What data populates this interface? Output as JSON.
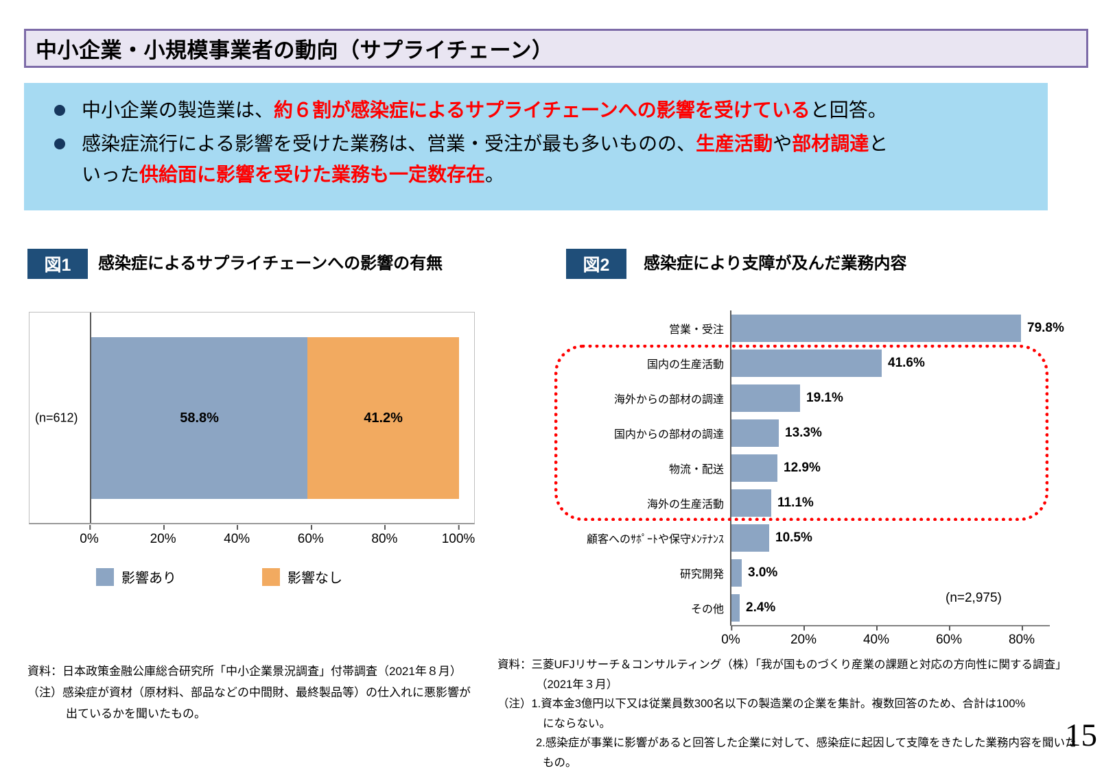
{
  "page": {
    "title": "中小企業・小規模事業者の動向（サプライチェーン）",
    "page_number": "15"
  },
  "summary": {
    "bullet1": {
      "t1": "中小企業の製造業は、",
      "em1": "約６割が感染症によるサプライチェーンへの影響を受けている",
      "t2": "と回答。"
    },
    "bullet2": {
      "t1": "感染症流行による影響を受けた業務は、営業・受注が最も多いものの、",
      "em1": "生産活動",
      "t2": "や",
      "em2": "部材調達",
      "t3": "と",
      "t4": "いった",
      "em3": "供給面に影響を受けた業務も一定数存在",
      "t5": "。"
    }
  },
  "chart_data": [
    {
      "type": "bar",
      "subtype": "stacked-horizontal-100pct",
      "fig_label": "図1",
      "title": "感染症によるサプライチェーンへの影響の有無",
      "n_label": "(n=612)",
      "categories": [
        "影響あり",
        "影響なし"
      ],
      "values": [
        58.8,
        41.2
      ],
      "value_labels": [
        "58.8%",
        "41.2%"
      ],
      "colors": [
        "#8CA5C3",
        "#F2AA60"
      ],
      "x_ticks": [
        "0%",
        "20%",
        "40%",
        "60%",
        "80%",
        "100%"
      ],
      "xlim": [
        0,
        100
      ],
      "legend_position": "bottom"
    },
    {
      "type": "bar",
      "subtype": "horizontal",
      "fig_label": "図2",
      "title": "感染症により支障が及んだ業務内容",
      "n_label": "(n=2,975)",
      "categories": [
        "営業・受注",
        "国内の生産活動",
        "海外からの部材の調達",
        "国内からの部材の調達",
        "物流・配送",
        "海外の生産活動",
        "顧客へのｻﾎﾟｰﾄや保守ﾒﾝﾃﾅﾝｽ",
        "研究開発",
        "その他"
      ],
      "values": [
        79.8,
        41.6,
        19.1,
        13.3,
        12.9,
        11.1,
        10.5,
        3.0,
        2.4
      ],
      "value_labels": [
        "79.8%",
        "41.6%",
        "19.1%",
        "13.3%",
        "12.9%",
        "11.1%",
        "10.5%",
        "3.0%",
        "2.4%"
      ],
      "bar_color": "#8CA5C3",
      "x_ticks": [
        "0%",
        "20%",
        "40%",
        "60%",
        "80%"
      ],
      "xlim": [
        0,
        93
      ],
      "highlight": {
        "style": "red-dotted-rounded-box",
        "rows": [
          1,
          2,
          3,
          4,
          5
        ]
      }
    }
  ],
  "footnote_left": {
    "line1": "資料：日本政策金融公庫総合研究所「中小企業景況調査」付帯調査（2021年８月）",
    "line2": "（注）感染症が資材（原材料、部品などの中間財、最終製品等）の仕入れに悪影響が",
    "line3": "出ているかを聞いたもの。"
  },
  "footnote_right": {
    "line1": "資料：三菱UFJリサーチ＆コンサルティング（株）「我が国ものづくり産業の課題と対応の方向性に関する調査」",
    "line2": "（2021年３月）",
    "line3": "（注）1.資本金3億円以下又は従業員数300名以下の製造業の企業を集計。複数回答のため、合計は100%",
    "line4": "にならない。",
    "line5": "2.感染症が事業に影響があると回答した企業に対して、感染症に起因して支障をきたした業務内容を聞いた",
    "line6": "もの。"
  },
  "colors": {
    "title_bg": "#E9E5F2",
    "title_border": "#7D6BA8",
    "summary_bg": "#A6DAF2",
    "bullet_marker": "#17375E",
    "accent_red": "#FF0000",
    "badge_bg": "#1F4E79",
    "bar_blue": "#8CA5C3",
    "bar_orange": "#F2AA60",
    "highlight_border": "#FF0000"
  }
}
